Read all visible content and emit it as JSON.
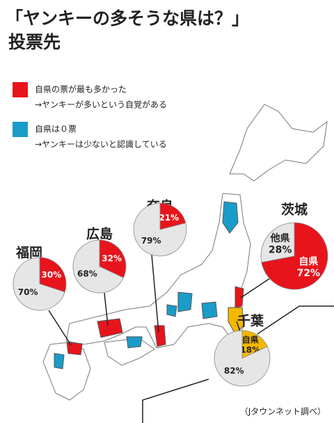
{
  "title": [
    "「ヤンキーの多そうな県は？」",
    "投票先"
  ],
  "legend": [
    {
      "color": "#e8141b",
      "label": "自県の票が最も多かった",
      "description": "→ヤンキーが多いという自覚がある"
    },
    {
      "color": "#1a9cc8",
      "label": "自県は０票",
      "description": "→ヤンキーは少ないと認識している"
    }
  ],
  "credit": "（Jタウンネット調べ）",
  "chart_data": [
    {
      "type": "pie",
      "title": "福岡",
      "categories": [
        null,
        null
      ],
      "values": [
        30,
        70
      ],
      "value_labels": [
        "30%",
        "70%"
      ],
      "colors": [
        "#e8141b",
        "#e6e6e6"
      ]
    },
    {
      "type": "pie",
      "title": "広島",
      "categories": [
        null,
        null
      ],
      "values": [
        32,
        68
      ],
      "value_labels": [
        "32%",
        "68%"
      ],
      "colors": [
        "#e8141b",
        "#e6e6e6"
      ]
    },
    {
      "type": "pie",
      "title": "奈良",
      "categories": [
        null,
        null
      ],
      "values": [
        21,
        79
      ],
      "value_labels": [
        "21%",
        "79%"
      ],
      "colors": [
        "#e8141b",
        "#e6e6e6"
      ]
    },
    {
      "type": "pie",
      "title": "茨城",
      "categories": [
        "自県",
        "他県"
      ],
      "values": [
        72,
        28
      ],
      "value_labels": [
        "72%",
        "28%"
      ],
      "colors": [
        "#e8141b",
        "#e6e6e6"
      ]
    },
    {
      "type": "pie",
      "title": "千葉",
      "categories": [
        "自県",
        null
      ],
      "values": [
        18,
        82
      ],
      "value_labels": [
        "18%",
        "82%"
      ],
      "colors": [
        "#f5b800",
        "#e6e6e6"
      ]
    }
  ]
}
